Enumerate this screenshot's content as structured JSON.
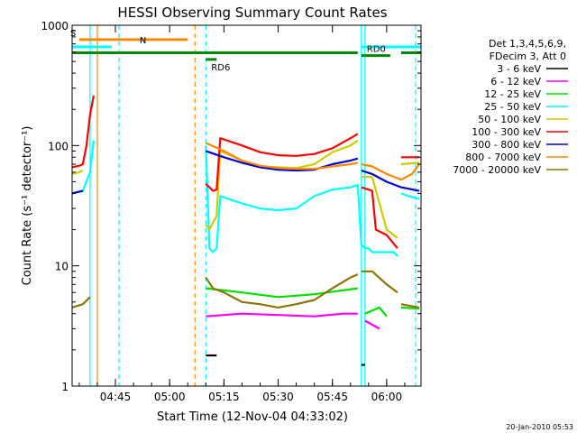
{
  "chart_data": {
    "type": "line",
    "title": "HESSI Observing Summary Count Rates",
    "xlabel": "Start Time (12-Nov-04 04:33:02)",
    "ylabel": "Count Rate (s⁻¹ detector⁻¹)",
    "ylog": true,
    "ylim": [
      1,
      1000
    ],
    "xlim": [
      "04:33:02",
      "06:09:30"
    ],
    "x_ticks": [
      "04:45",
      "05:00",
      "05:15",
      "05:30",
      "05:45",
      "06:00"
    ],
    "y_ticks": [
      "1",
      "10",
      "100",
      "1000"
    ],
    "footer_date": "20-Jan-2010 05:53",
    "legend_header": [
      "Det 1,3,4,5,6,9,",
      "FDecim 3, Att 0"
    ],
    "series": [
      {
        "name": "3 - 6 keV",
        "color": "#000000",
        "segments": [
          [
            [
              "05:10",
              "1.8"
            ],
            [
              "05:13",
              "1.8"
            ]
          ],
          [
            [
              "05:53",
              "1.5"
            ],
            [
              "05:54",
              "1.5"
            ]
          ]
        ]
      },
      {
        "name": "6 - 12 keV",
        "color": "#ff00ff",
        "segments": [
          [
            [
              "05:10",
              "3.8"
            ],
            [
              "05:20",
              "4.0"
            ],
            [
              "05:30",
              "3.9"
            ],
            [
              "05:40",
              "3.8"
            ],
            [
              "05:48",
              "4.0"
            ],
            [
              "05:52",
              "4.0"
            ]
          ],
          [
            [
              "05:54",
              "3.5"
            ],
            [
              "05:58",
              "3.0"
            ]
          ]
        ]
      },
      {
        "name": "12 - 25 keV",
        "color": "#00dd00",
        "segments": [
          [
            [
              "05:10",
              "6.5"
            ],
            [
              "05:20",
              "6.0"
            ],
            [
              "05:30",
              "5.5"
            ],
            [
              "05:40",
              "5.8"
            ],
            [
              "05:47",
              "6.2"
            ],
            [
              "05:52",
              "6.5"
            ]
          ],
          [
            [
              "05:54",
              "4.0"
            ],
            [
              "05:58",
              "4.5"
            ],
            [
              "06:00",
              "3.8"
            ]
          ],
          [
            [
              "06:04",
              "4.5"
            ],
            [
              "06:09",
              "4.4"
            ]
          ]
        ]
      },
      {
        "name": "25 - 50 keV",
        "color": "#00ffff",
        "segments": [
          [
            [
              "04:33",
              "40"
            ],
            [
              "04:36",
              "42"
            ],
            [
              "04:38",
              "60"
            ],
            [
              "04:39",
              "110"
            ]
          ],
          [
            [
              "05:10",
              "100"
            ],
            [
              "05:11",
              "14"
            ],
            [
              "05:12",
              "13"
            ],
            [
              "05:13",
              "14"
            ],
            [
              "05:14",
              "38"
            ],
            [
              "05:20",
              "33"
            ],
            [
              "05:25",
              "30"
            ],
            [
              "05:30",
              "29"
            ],
            [
              "05:35",
              "30"
            ],
            [
              "05:40",
              "38"
            ],
            [
              "05:45",
              "43"
            ],
            [
              "05:50",
              "45"
            ],
            [
              "05:52",
              "47"
            ],
            [
              "05:53",
              "15"
            ],
            [
              "05:54",
              "14"
            ],
            [
              "05:55",
              "14"
            ],
            [
              "05:56",
              "13"
            ],
            [
              "06:02",
              "13"
            ],
            [
              "06:03",
              "12"
            ]
          ],
          [
            [
              "06:04",
              "40"
            ],
            [
              "06:06",
              "38"
            ],
            [
              "06:09",
              "36"
            ]
          ]
        ]
      },
      {
        "name": "50 - 100 keV",
        "color": "#cccc00",
        "segments": [
          [
            [
              "04:33",
              "58"
            ],
            [
              "04:35",
              "60"
            ],
            [
              "04:36",
              "62"
            ]
          ],
          [
            [
              "05:10",
              "22"
            ],
            [
              "05:11",
              "20"
            ],
            [
              "05:13",
              "26"
            ],
            [
              "05:14",
              "90"
            ],
            [
              "05:20",
              "75"
            ],
            [
              "05:25",
              "67"
            ],
            [
              "05:30",
              "66"
            ],
            [
              "05:35",
              "65"
            ],
            [
              "05:40",
              "70"
            ],
            [
              "05:45",
              "88"
            ],
            [
              "05:50",
              "100"
            ],
            [
              "05:52",
              "110"
            ]
          ],
          [
            [
              "05:53",
              "55"
            ],
            [
              "05:56",
              "55"
            ],
            [
              "06:00",
              "20"
            ],
            [
              "06:03",
              "17"
            ]
          ],
          [
            [
              "06:04",
              "70"
            ],
            [
              "06:09",
              "72"
            ]
          ]
        ]
      },
      {
        "name": "100 - 300 keV",
        "color": "#ff0000",
        "segments": [
          [
            [
              "04:33",
              "66"
            ],
            [
              "04:35",
              "68"
            ],
            [
              "04:36",
              "70"
            ],
            [
              "04:37",
              "100"
            ],
            [
              "04:38",
              "180"
            ],
            [
              "04:39",
              "260"
            ]
          ],
          [
            [
              "05:10",
              "48"
            ],
            [
              "05:12",
              "42"
            ],
            [
              "05:13",
              "43"
            ],
            [
              "05:14",
              "115"
            ],
            [
              "05:20",
              "100"
            ],
            [
              "05:25",
              "88"
            ],
            [
              "05:30",
              "83"
            ],
            [
              "05:35",
              "82"
            ],
            [
              "05:40",
              "85"
            ],
            [
              "05:45",
              "95"
            ],
            [
              "05:50",
              "115"
            ],
            [
              "05:52",
              "125"
            ]
          ],
          [
            [
              "05:53",
              "45"
            ],
            [
              "05:56",
              "42"
            ],
            [
              "05:57",
              "20"
            ],
            [
              "06:00",
              "18"
            ],
            [
              "06:03",
              "14"
            ]
          ],
          [
            [
              "06:04",
              "80"
            ],
            [
              "06:09",
              "80"
            ]
          ]
        ]
      },
      {
        "name": "300 - 800 keV",
        "color": "#0000cc",
        "segments": [
          [
            [
              "04:33",
              "40"
            ],
            [
              "04:36",
              "42"
            ]
          ],
          [
            [
              "05:10",
              "90"
            ],
            [
              "05:15",
              "80"
            ],
            [
              "05:20",
              "72"
            ],
            [
              "05:25",
              "66"
            ],
            [
              "05:30",
              "63"
            ],
            [
              "05:35",
              "62"
            ],
            [
              "05:40",
              "63"
            ],
            [
              "05:45",
              "70"
            ],
            [
              "05:50",
              "75"
            ],
            [
              "05:52",
              "78"
            ]
          ],
          [
            [
              "05:53",
              "62"
            ],
            [
              "05:56",
              "58"
            ],
            [
              "06:00",
              "50"
            ],
            [
              "06:04",
              "45"
            ],
            [
              "06:09",
              "42"
            ]
          ]
        ]
      },
      {
        "name": "800 - 7000 keV",
        "color": "#ff8800",
        "segments": [
          [
            [
              "05:10",
              "105"
            ],
            [
              "05:15",
              "90"
            ],
            [
              "05:20",
              "75"
            ],
            [
              "05:25",
              "68"
            ],
            [
              "05:30",
              "65"
            ],
            [
              "05:35",
              "64"
            ],
            [
              "05:40",
              "64"
            ],
            [
              "05:45",
              "67"
            ],
            [
              "05:50",
              "70"
            ],
            [
              "05:52",
              "72"
            ]
          ],
          [
            [
              "05:53",
              "70"
            ],
            [
              "05:56",
              "67"
            ],
            [
              "06:00",
              "58"
            ],
            [
              "06:04",
              "52"
            ],
            [
              "06:07",
              "58"
            ],
            [
              "06:09",
              "70"
            ]
          ]
        ]
      },
      {
        "name": "7000 - 20000 keV",
        "color": "#8b7500",
        "segments": [
          [
            [
              "04:33",
              "4.5"
            ],
            [
              "04:36",
              "4.8"
            ],
            [
              "04:38",
              "5.5"
            ]
          ],
          [
            [
              "05:10",
              "8"
            ],
            [
              "05:12",
              "6.5"
            ],
            [
              "05:15",
              "6"
            ],
            [
              "05:20",
              "5"
            ],
            [
              "05:25",
              "4.8"
            ],
            [
              "05:30",
              "4.5"
            ],
            [
              "05:35",
              "4.8"
            ],
            [
              "05:40",
              "5.2"
            ],
            [
              "05:45",
              "6.5"
            ],
            [
              "05:50",
              "8"
            ],
            [
              "05:52",
              "8.5"
            ]
          ],
          [
            [
              "05:53",
              "9"
            ],
            [
              "05:56",
              "9"
            ],
            [
              "06:00",
              "7"
            ],
            [
              "06:03",
              "6"
            ]
          ],
          [
            [
              "06:04",
              "4.8"
            ],
            [
              "06:09",
              "4.5"
            ]
          ]
        ]
      }
    ],
    "flag_bars": [
      {
        "label": "S",
        "color": "#ff8800",
        "y": "760",
        "spans": [
          [
            "04:35",
            "05:05"
          ]
        ]
      },
      {
        "label": "N",
        "color": "#00ffff",
        "y": "660",
        "spans": [
          [
            "04:33",
            "04:44"
          ],
          [
            "05:53",
            "06:09:30"
          ]
        ]
      },
      {
        "label": "",
        "color": "#008800",
        "y": "590",
        "spans": [
          [
            "04:33",
            "05:09"
          ],
          [
            "05:09",
            "05:52"
          ],
          [
            "06:04",
            "06:09:30"
          ]
        ]
      },
      {
        "label": "RD0",
        "color": "#008800",
        "y": "560",
        "spans": [
          [
            "05:53",
            "06:01"
          ]
        ]
      },
      {
        "label": "RD6",
        "color": "#008800",
        "y": "520",
        "spans": [
          [
            "05:10",
            "05:13"
          ]
        ]
      }
    ],
    "vertical_markers": [
      {
        "time": "04:38",
        "color": "#00ffff",
        "style": "solid"
      },
      {
        "time": "04:40",
        "color": "#ff8800",
        "style": "solid"
      },
      {
        "time": "04:46",
        "color": "#00ffff",
        "style": "dashed"
      },
      {
        "time": "05:07",
        "color": "#ff8800",
        "style": "dashed"
      },
      {
        "time": "05:10",
        "color": "#00ffff",
        "style": "dashed"
      },
      {
        "time": "05:53",
        "color": "#00ffff",
        "style": "solid"
      },
      {
        "time": "05:54",
        "color": "#00ffff",
        "style": "solid"
      },
      {
        "time": "06:08",
        "color": "#00ffff",
        "style": "dashed"
      }
    ]
  }
}
